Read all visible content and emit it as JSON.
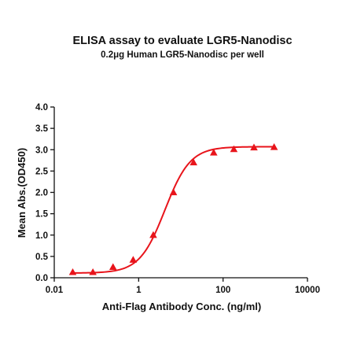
{
  "chart_data": {
    "type": "scatter",
    "title": "ELISA assay to evaluate LGR5-Nanodisc",
    "subtitle": "0.2μg Human LGR5-Nanodisc per well",
    "xlabel": "Anti-Flag Antibody Conc. (ng/ml)",
    "ylabel": "Mean Abs.(OD450)",
    "x_scale": "log",
    "xlim": [
      0.01,
      10000
    ],
    "ylim": [
      0,
      4.0
    ],
    "x_ticks": [
      "0.01",
      "1",
      "100",
      "10000"
    ],
    "y_ticks": [
      "0.0",
      "0.5",
      "1.0",
      "1.5",
      "2.0",
      "2.5",
      "3.0",
      "3.5",
      "4.0"
    ],
    "grid": false,
    "series": [
      {
        "marker": "triangle",
        "color": "#e8141b",
        "fit": "4pl-curve",
        "x": [
          0.0274,
          0.0823,
          0.247,
          0.741,
          2.22,
          6.67,
          20,
          60,
          180,
          540,
          1620
        ],
        "y": [
          0.13,
          0.13,
          0.25,
          0.42,
          1.0,
          2.0,
          2.7,
          2.93,
          3.01,
          3.05,
          3.06
        ]
      }
    ]
  }
}
